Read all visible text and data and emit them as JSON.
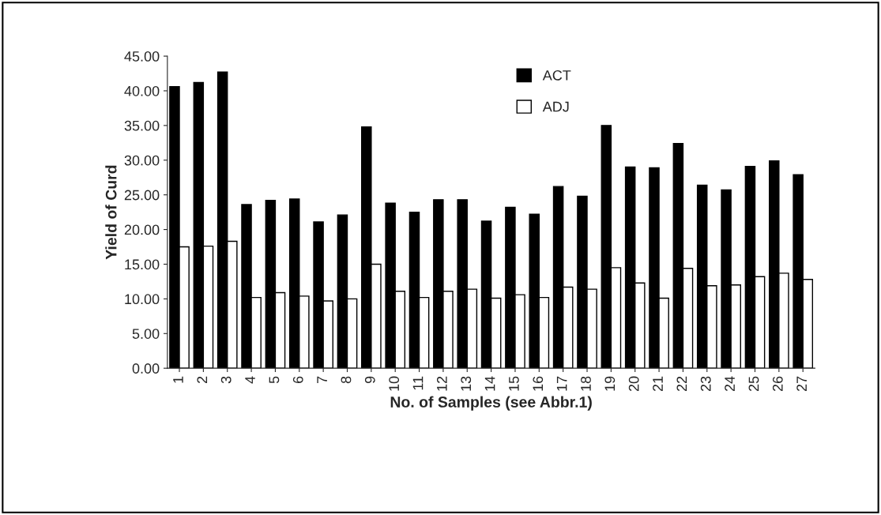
{
  "chart_data": {
    "type": "bar",
    "xlabel": "No. of Samples (see Abbr.1)",
    "ylabel": "Yield of Curd",
    "categories": [
      "1",
      "2",
      "3",
      "4",
      "5",
      "6",
      "7",
      "8",
      "9",
      "10",
      "11",
      "12",
      "13",
      "14",
      "15",
      "16",
      "17",
      "18",
      "19",
      "20",
      "21",
      "22",
      "23",
      "24",
      "25",
      "26",
      "27"
    ],
    "series": [
      {
        "name": "ACT",
        "color": "#000000",
        "values": [
          40.6,
          41.2,
          42.7,
          23.6,
          24.2,
          24.4,
          21.1,
          22.1,
          34.8,
          23.8,
          22.5,
          24.3,
          24.3,
          21.2,
          23.2,
          22.2,
          26.2,
          24.8,
          35.0,
          29.0,
          28.9,
          32.4,
          26.4,
          25.7,
          29.1,
          29.9,
          27.9
        ]
      },
      {
        "name": "ADJ",
        "color": "#ffffff",
        "values": [
          17.5,
          17.6,
          18.3,
          10.2,
          10.9,
          10.4,
          9.7,
          10.0,
          15.0,
          11.1,
          10.2,
          11.1,
          11.4,
          10.1,
          10.6,
          10.2,
          11.7,
          11.4,
          14.5,
          12.3,
          10.1,
          14.4,
          11.9,
          12.0,
          13.2,
          13.7,
          12.8
        ]
      }
    ],
    "ylim": [
      0,
      45
    ],
    "yticks": [
      {
        "value": 0,
        "label": "0.00"
      },
      {
        "value": 5,
        "label": "5.00"
      },
      {
        "value": 10,
        "label": "10.00"
      },
      {
        "value": 15,
        "label": "15.00"
      },
      {
        "value": 20,
        "label": "20.00"
      },
      {
        "value": 25,
        "label": "25.00"
      },
      {
        "value": 30,
        "label": "30.00"
      },
      {
        "value": 35,
        "label": "35.00"
      },
      {
        "value": 40,
        "label": "40.00"
      },
      {
        "value": 45,
        "label": "45.00"
      }
    ],
    "grid": false,
    "legend": "top"
  }
}
